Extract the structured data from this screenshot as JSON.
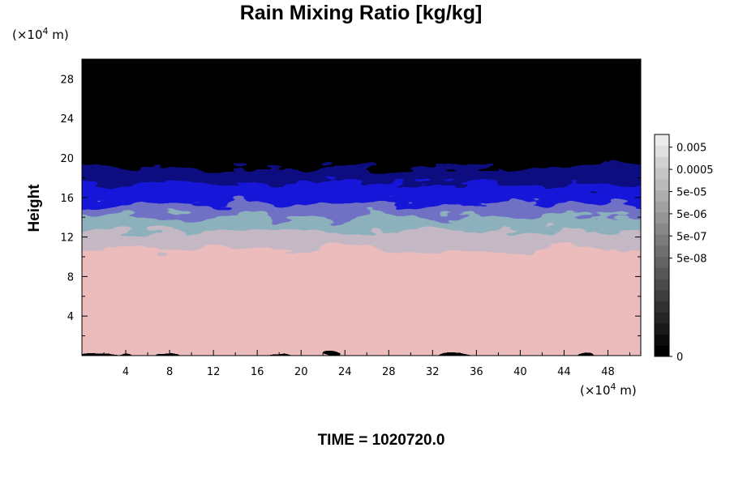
{
  "chart_data": {
    "type": "heatmap",
    "title": "Rain Mixing Ratio [kg/kg]",
    "ylabel": "Height",
    "xlabel": "",
    "x_unit": {
      "prefix": "(×10",
      "exp": "4",
      "suffix": " m)"
    },
    "y_unit": {
      "prefix": "(×10",
      "exp": "4",
      "suffix": " m)"
    },
    "xlim": [
      0,
      51
    ],
    "ylim": [
      0,
      30
    ],
    "x_ticks": [
      4,
      8,
      12,
      16,
      20,
      24,
      28,
      32,
      36,
      40,
      44,
      48
    ],
    "y_ticks": [
      4,
      8,
      12,
      16,
      20,
      24,
      28
    ],
    "x_minor_step": 2,
    "y_minor_step": 2,
    "bands": [
      {
        "name": "surface",
        "color": "#ecbcbc",
        "y0": 0,
        "y1": 11
      },
      {
        "name": "transition-gray",
        "color": "#c4b8c4",
        "y0": 11,
        "y1": 12.8
      },
      {
        "name": "teal-layer",
        "color": "#8cb0bc",
        "y0": 12.8,
        "y1": 14.2
      },
      {
        "name": "purple-layer",
        "color": "#7070c4",
        "y0": 14.2,
        "y1": 15.5
      },
      {
        "name": "blue-layer",
        "color": "#1818d8",
        "y0": 15.5,
        "y1": 17.5
      },
      {
        "name": "dark-blue-layer",
        "color": "#0a0a80",
        "y0": 17.5,
        "y1": 19.3
      },
      {
        "name": "top",
        "color": "#000000",
        "y0": 19.3,
        "y1": 30
      }
    ],
    "colorbar": {
      "levels": 20,
      "labels": [
        "0.005",
        "0.0005",
        "5e-05",
        "5e-06",
        "5e-07",
        "5e-08",
        "0"
      ]
    },
    "annotation": "TIME = 1020720.0"
  }
}
